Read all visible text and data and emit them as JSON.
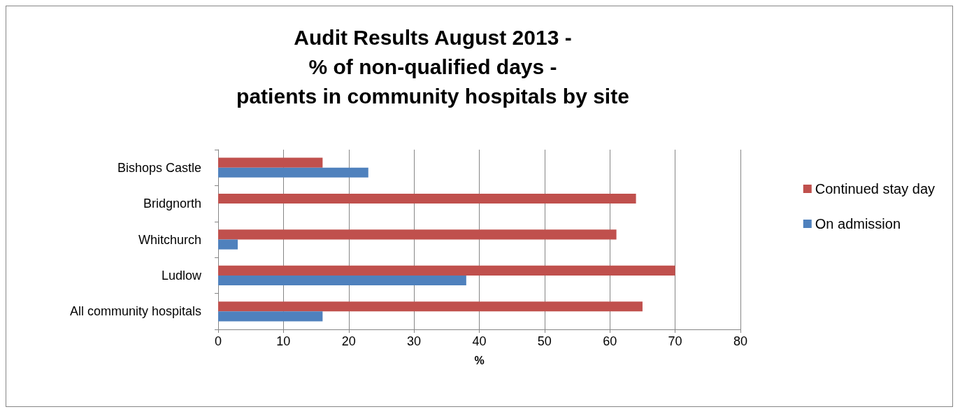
{
  "chart_data": {
    "type": "bar",
    "orientation": "horizontal",
    "title": "Audit Results August 2013 -\n% of non-qualified days -\npatients in community hospitals by site",
    "xlabel": "%",
    "categories": [
      "Bishops Castle",
      "Bridgnorth",
      "Whitchurch",
      "Ludlow",
      "All community hospitals"
    ],
    "series": [
      {
        "name": "Continued stay day",
        "color": "#c0504d",
        "values": [
          16,
          64,
          61,
          70,
          65
        ]
      },
      {
        "name": "On admission",
        "color": "#4f81bd",
        "values": [
          23,
          0,
          3,
          38,
          16
        ]
      }
    ],
    "xlim": [
      0,
      80
    ],
    "xticks": [
      0,
      10,
      20,
      30,
      40,
      50,
      60,
      70,
      80
    ],
    "grid": "x",
    "legend": "right"
  }
}
